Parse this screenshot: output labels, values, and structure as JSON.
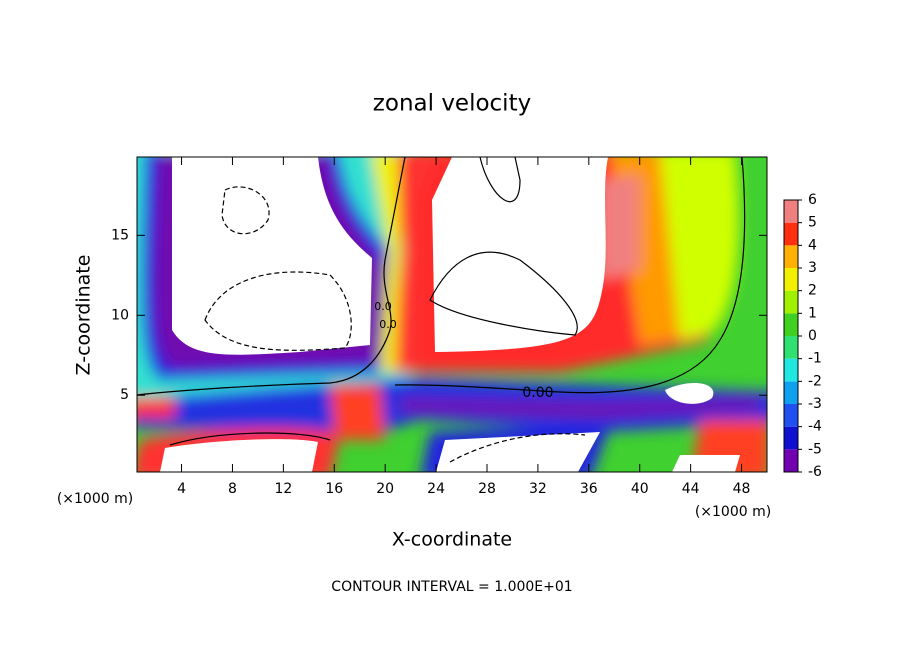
{
  "chart_data": {
    "type": "contour",
    "title": "zonal velocity",
    "x_label": "X-coordinate",
    "y_label": "Z-coordinate",
    "x_unit": "(×1000 m)",
    "footnote": "CONTOUR INTERVAL = 1.000E+01",
    "xlim": [
      0.5,
      50
    ],
    "ylim": [
      0.2,
      19.9
    ],
    "xticks": [
      4,
      8,
      12,
      16,
      20,
      24,
      28,
      32,
      36,
      40,
      44,
      48
    ],
    "yticks": [
      5,
      10,
      15
    ],
    "contour_labels": [
      "0.00",
      "0.0",
      "0.0"
    ],
    "colorbar": {
      "levels": [
        -6,
        -5,
        -4,
        -3,
        -2,
        -1,
        0,
        1,
        2,
        3,
        4,
        5,
        6
      ],
      "colors": [
        "#7000b0",
        "#1010d0",
        "#2050f0",
        "#10a0f0",
        "#20e8e0",
        "#30e070",
        "#40d020",
        "#a0f000",
        "#f0f000",
        "#ffb000",
        "#ff3010",
        "#f08080"
      ]
    }
  }
}
